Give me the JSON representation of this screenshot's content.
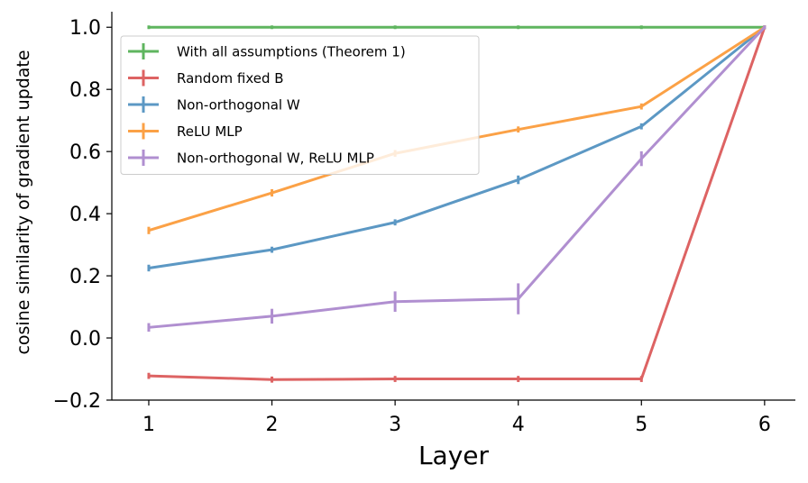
{
  "chart_data": {
    "type": "line",
    "xlabel": "Layer",
    "ylabel": "cosine similarity of gradient update",
    "x": [
      1,
      2,
      3,
      4,
      5,
      6
    ],
    "xticks": [
      "1",
      "2",
      "3",
      "4",
      "5",
      "6"
    ],
    "xlim": [
      0.7,
      6.25
    ],
    "ylim": [
      -0.2,
      1.05
    ],
    "yticks": [
      "−0.2",
      "0.0",
      "0.2",
      "0.4",
      "0.6",
      "0.8",
      "1.0"
    ],
    "ytick_values": [
      -0.2,
      0.0,
      0.2,
      0.4,
      0.6,
      0.8,
      1.0
    ],
    "grid": false,
    "legend_position": "top-left",
    "series": [
      {
        "name": "With all assumptions (Theorem 1)",
        "color": "#5fb55f",
        "values": [
          1.0,
          1.0,
          1.0,
          1.0,
          1.0,
          1.0
        ],
        "errors": [
          0,
          0,
          0,
          0,
          0,
          0
        ]
      },
      {
        "name": "Random fixed B",
        "color": "#dd6363",
        "values": [
          -0.122,
          -0.134,
          -0.132,
          -0.132,
          -0.132,
          1.0
        ],
        "errors": [
          0.004,
          0.004,
          0.004,
          0.004,
          0.004,
          0
        ]
      },
      {
        "name": "Non-orthogonal W",
        "color": "#5c98c4",
        "values": [
          0.225,
          0.284,
          0.372,
          0.509,
          0.681,
          1.0
        ],
        "errors": [
          0.005,
          0.004,
          0.004,
          0.008,
          0.004,
          0
        ]
      },
      {
        "name": "ReLU MLP",
        "color": "#fba146",
        "values": [
          0.346,
          0.467,
          0.594,
          0.671,
          0.745,
          1.0
        ],
        "errors": [
          0.006,
          0.006,
          0.005,
          0.004,
          0.004,
          0
        ]
      },
      {
        "name": "Non-orthogonal W, ReLU MLP",
        "color": "#b08fd0",
        "values": [
          0.034,
          0.07,
          0.117,
          0.126,
          0.577,
          1.0
        ],
        "errors": [
          0.008,
          0.018,
          0.027,
          0.044,
          0.018,
          0
        ]
      }
    ]
  }
}
